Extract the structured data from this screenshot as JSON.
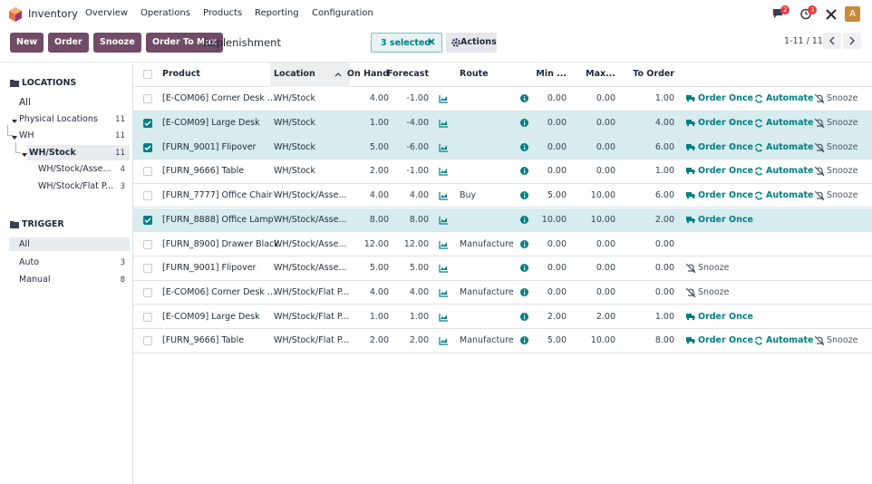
{
  "navbar": {
    "app": "Inventory",
    "menu": [
      "Overview",
      "Operations",
      "Products",
      "Reporting",
      "Configuration"
    ],
    "messages_badge": "2",
    "activities_badge": "3",
    "avatar": "A"
  },
  "control": {
    "buttons": [
      "New",
      "Order",
      "Snooze",
      "Order To Max"
    ],
    "breadcrumb": "Replenishment",
    "selection": "3 selected",
    "actions": "Actions",
    "pager": "1-11 / 11"
  },
  "sidebar": {
    "locations": {
      "title": "LOCATIONS",
      "items": [
        {
          "label": "All",
          "level": 0,
          "active": false
        },
        {
          "label": "Physical Locations",
          "count": 11,
          "level": 0,
          "caret": true,
          "active": false
        },
        {
          "label": "WH",
          "count": 11,
          "level": 1,
          "caret": true,
          "active": false
        },
        {
          "label": "WH/Stock",
          "count": 11,
          "level": 2,
          "caret": true,
          "active": true
        },
        {
          "label": "WH/Stock/Asse...",
          "count": 4,
          "level": 3,
          "active": false
        },
        {
          "label": "WH/Stock/Flat P...",
          "count": 3,
          "level": 3,
          "active": false
        }
      ]
    },
    "trigger": {
      "title": "TRIGGER",
      "items": [
        {
          "label": "All",
          "active": true
        },
        {
          "label": "Auto",
          "count": 3,
          "active": false
        },
        {
          "label": "Manual",
          "count": 8,
          "active": false
        }
      ]
    }
  },
  "table": {
    "headers": [
      "Product",
      "Location",
      "On Hand",
      "Forecast",
      "Route",
      "Min ...",
      "Max...",
      "To Order"
    ],
    "rows": [
      {
        "product": "[E-COM06] Corner Desk ...",
        "location": "WH/Stock",
        "on_hand": "4.00",
        "forecast": "-1.00",
        "min": "0.00",
        "max": "0.00",
        "to_order": "1.00",
        "actions": [
          "Order Once",
          "Automate",
          "Snooze"
        ],
        "selected": false
      },
      {
        "product": "[E-COM09] Large Desk",
        "location": "WH/Stock",
        "on_hand": "1.00",
        "forecast": "-4.00",
        "min": "0.00",
        "max": "0.00",
        "to_order": "4.00",
        "actions": [
          "Order Once",
          "Automate",
          "Snooze"
        ],
        "selected": true
      },
      {
        "product": "[FURN_9001] Flipover",
        "location": "WH/Stock",
        "on_hand": "5.00",
        "forecast": "-6.00",
        "min": "0.00",
        "max": "0.00",
        "to_order": "6.00",
        "actions": [
          "Order Once",
          "Automate",
          "Snooze"
        ],
        "selected": true
      },
      {
        "product": "[FURN_9666] Table",
        "location": "WH/Stock",
        "on_hand": "2.00",
        "forecast": "-1.00",
        "min": "0.00",
        "max": "0.00",
        "to_order": "1.00",
        "actions": [
          "Order Once",
          "Automate",
          "Snooze"
        ],
        "selected": false
      },
      {
        "product": "[FURN_7777] Office Chair",
        "location": "WH/Stock/Asse...",
        "on_hand": "4.00",
        "forecast": "4.00",
        "route": "Buy",
        "min": "5.00",
        "max": "10.00",
        "to_order": "6.00",
        "actions": [
          "Order Once",
          "Automate",
          "Snooze"
        ],
        "selected": false
      },
      {
        "product": "[FURN_8888] Office Lamp",
        "location": "WH/Stock/Asse...",
        "on_hand": "8.00",
        "forecast": "8.00",
        "min": "10.00",
        "max": "10.00",
        "to_order": "2.00",
        "actions": [
          "Order Once"
        ],
        "selected": true
      },
      {
        "product": "[FURN_8900] Drawer Black",
        "location": "WH/Stock/Asse...",
        "on_hand": "12.00",
        "forecast": "12.00",
        "route": "Manufacture",
        "min": "0.00",
        "max": "0.00",
        "to_order": "0.00",
        "actions": [],
        "selected": false
      },
      {
        "product": "[FURN_9001] Flipover",
        "location": "WH/Stock/Asse...",
        "on_hand": "5.00",
        "forecast": "5.00",
        "min": "0.00",
        "max": "0.00",
        "to_order": "0.00",
        "actions": [
          "Snooze"
        ],
        "selected": false
      },
      {
        "product": "[E-COM06] Corner Desk ...",
        "location": "WH/Stock/Flat P...",
        "on_hand": "4.00",
        "forecast": "4.00",
        "route": "Manufacture",
        "min": "0.00",
        "max": "0.00",
        "to_order": "0.00",
        "actions": [
          "Snooze"
        ],
        "selected": false
      },
      {
        "product": "[E-COM09] Large Desk",
        "location": "WH/Stock/Flat P...",
        "on_hand": "1.00",
        "forecast": "1.00",
        "min": "2.00",
        "max": "2.00",
        "to_order": "1.00",
        "actions": [
          "Order Once"
        ],
        "selected": false
      },
      {
        "product": "[FURN_9666] Table",
        "location": "WH/Stock/Flat P...",
        "on_hand": "2.00",
        "forecast": "2.00",
        "route": "Manufacture",
        "min": "5.00",
        "max": "10.00",
        "to_order": "8.00",
        "actions": [
          "Order Once",
          "Automate",
          "Snooze"
        ],
        "selected": false
      }
    ]
  }
}
